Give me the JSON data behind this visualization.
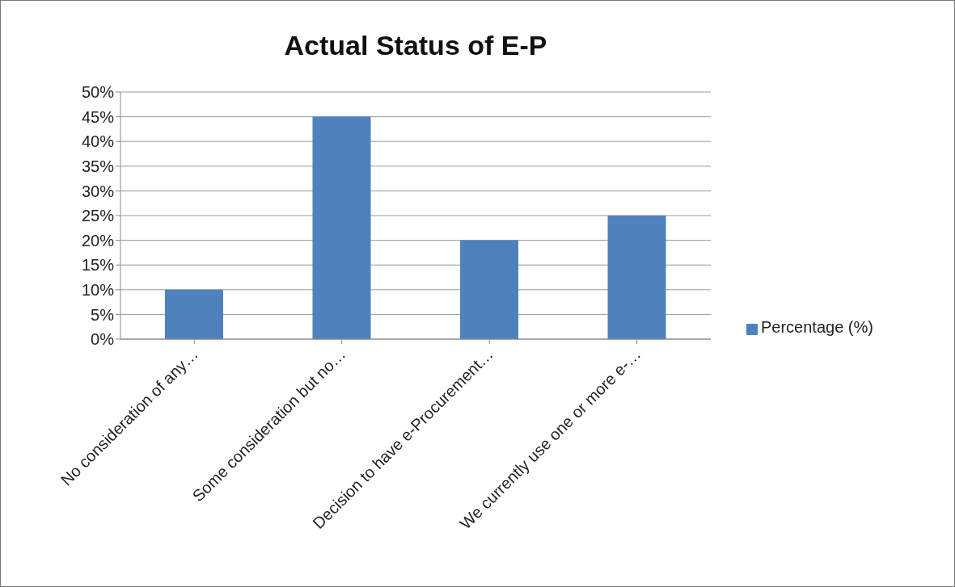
{
  "chart_data": {
    "type": "bar",
    "title": "Actual Status of E-P",
    "categories": [
      "No consideration of any…",
      "Some consideration but no…",
      "Decision to have e-Procurement…",
      "We currently use one or more e-…"
    ],
    "series": [
      {
        "name": "Percentage (%)",
        "color": "#4f81bd",
        "values": [
          10,
          45,
          20,
          25
        ]
      }
    ],
    "ylim": [
      0,
      50
    ],
    "yticks": [
      {
        "value": 0,
        "label": "0%"
      },
      {
        "value": 5,
        "label": "5%"
      },
      {
        "value": 10,
        "label": "10%"
      },
      {
        "value": 15,
        "label": "15%"
      },
      {
        "value": 20,
        "label": "20%"
      },
      {
        "value": 25,
        "label": "25%"
      },
      {
        "value": 30,
        "label": "30%"
      },
      {
        "value": 35,
        "label": "35%"
      },
      {
        "value": 40,
        "label": "40%"
      },
      {
        "value": 45,
        "label": "45%"
      },
      {
        "value": 50,
        "label": "50%"
      }
    ],
    "grid": "y",
    "legend": "right"
  }
}
